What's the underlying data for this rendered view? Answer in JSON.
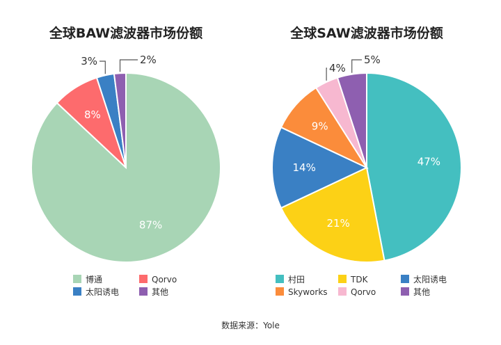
{
  "chart_data": [
    {
      "type": "pie",
      "title": "全球BAW滤波器市场份额",
      "slices": [
        {
          "label": "博通",
          "value": 87,
          "display": "87%",
          "color": "#a8d5b5"
        },
        {
          "label": "Qorvo",
          "value": 8,
          "display": "8%",
          "color": "#fd6b6d"
        },
        {
          "label": "太阳诱电",
          "value": 3,
          "display": "3%",
          "color": "#3a80c4"
        },
        {
          "label": "其他",
          "value": 2,
          "display": "2%",
          "color": "#8e5fb0"
        }
      ],
      "legend_position": "bottom"
    },
    {
      "type": "pie",
      "title": "全球SAW滤波器市场份额",
      "slices": [
        {
          "label": "村田",
          "value": 47,
          "display": "47%",
          "color": "#44bfc0"
        },
        {
          "label": "TDK",
          "value": 21,
          "display": "21%",
          "color": "#fcd116"
        },
        {
          "label": "太阳诱电",
          "value": 14,
          "display": "14%",
          "color": "#3a80c4"
        },
        {
          "label": "Skyworks",
          "value": 9,
          "display": "9%",
          "color": "#fb8c3b"
        },
        {
          "label": "Qorvo",
          "value": 4,
          "display": "4%",
          "color": "#f7b8d0"
        },
        {
          "label": "其他",
          "value": 5,
          "display": "5%",
          "color": "#8e5fb0"
        }
      ],
      "legend_position": "bottom"
    }
  ],
  "source": "数据来源：Yole"
}
